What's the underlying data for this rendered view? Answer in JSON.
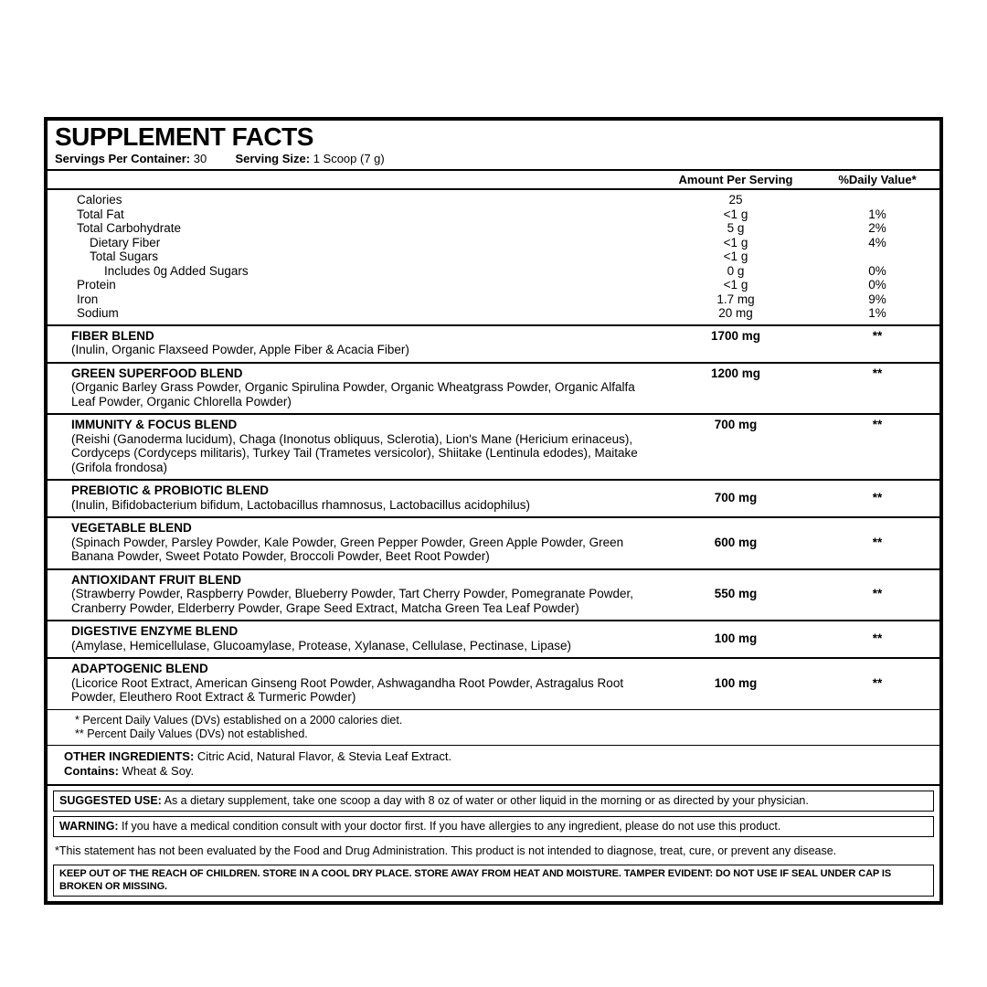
{
  "title": "SUPPLEMENT FACTS",
  "servings": {
    "per_container_label": "Servings Per Container:",
    "per_container_value": " 30",
    "size_label": "Serving Size:",
    "size_value": " 1 Scoop (7 g)"
  },
  "header": {
    "amount": "Amount  Per Serving",
    "dv": "%Daily Value*"
  },
  "nutrients": [
    {
      "name": "Calories",
      "indent": 1,
      "amount": "25",
      "dv": ""
    },
    {
      "name": "Total Fat",
      "indent": 1,
      "amount": "<1 g",
      "dv": "1%"
    },
    {
      "name": "Total Carbohydrate",
      "indent": 1,
      "amount": "5 g",
      "dv": "2%"
    },
    {
      "name": "Dietary Fiber",
      "indent": 2,
      "amount": "<1 g",
      "dv": "4%"
    },
    {
      "name": "Total Sugars",
      "indent": 2,
      "amount": "<1 g",
      "dv": ""
    },
    {
      "name": "Includes 0g Added Sugars",
      "indent": 3,
      "amount": "0 g",
      "dv": "0%"
    },
    {
      "name": "Protein",
      "indent": 1,
      "amount": "<1 g",
      "dv": "0%"
    },
    {
      "name": "Iron",
      "indent": 1,
      "amount": "1.7 mg",
      "dv": "9%"
    },
    {
      "name": "Sodium",
      "indent": 1,
      "amount": "20 mg",
      "dv": "1%"
    }
  ],
  "blends": [
    {
      "name": "FIBER BLEND",
      "desc": "(Inulin, Organic Flaxseed Powder, Apple Fiber & Acacia Fiber)",
      "amount": "1700 mg",
      "dv": "**",
      "align": "top"
    },
    {
      "name": "GREEN SUPERFOOD BLEND",
      "desc": "(Organic Barley Grass Powder, Organic Spirulina Powder, Organic Wheatgrass Powder, Organic Alfalfa Leaf Powder, Organic Chlorella Powder)",
      "amount": "1200 mg",
      "dv": "**",
      "align": "top"
    },
    {
      "name": "IMMUNITY & FOCUS BLEND",
      "desc": "(Reishi (Ganoderma lucidum), Chaga (Inonotus obliquus, Sclerotia), Lion's Mane (Hericium erinaceus), Cordyceps (Cordyceps militaris), Turkey Tail (Trametes versicolor), Shiitake (Lentinula edodes), Maitake (Grifola frondosa)",
      "amount": "700 mg",
      "dv": "**",
      "align": "top"
    },
    {
      "name": "PREBIOTIC & PROBIOTIC BLEND",
      "desc": "(Inulin, Bifidobacterium bifidum, Lactobacillus rhamnosus, Lactobacillus acidophilus)",
      "amount": "700 mg",
      "dv": "**",
      "align": "middle"
    },
    {
      "name": "VEGETABLE BLEND",
      "desc": "(Spinach Powder, Parsley Powder, Kale Powder, Green Pepper Powder, Green Apple Powder, Green Banana Powder, Sweet Potato Powder, Broccoli Powder, Beet Root Powder)",
      "amount": "600 mg",
      "dv": "**",
      "align": "middle"
    },
    {
      "name": "ANTIOXIDANT FRUIT BLEND",
      "desc": "(Strawberry Powder, Raspberry Powder, Blueberry Powder, Tart Cherry Powder, Pomegranate Powder, Cranberry Powder, Elderberry Powder, Grape Seed Extract, Matcha Green Tea Leaf Powder)",
      "amount": "550 mg",
      "dv": "**",
      "align": "middle"
    },
    {
      "name": "DIGESTIVE ENZYME BLEND",
      "desc": "(Amylase, Hemicellulase, Glucoamylase, Protease, Xylanase, Cellulase, Pectinase, Lipase)",
      "amount": "100 mg",
      "dv": "**",
      "align": "middle"
    },
    {
      "name": "ADAPTOGENIC BLEND",
      "desc": "(Licorice Root Extract, American Ginseng Root Powder, Ashwagandha Root Powder, Astragalus Root Powder, Eleuthero Root Extract & Turmeric Powder)",
      "amount": "100 mg",
      "dv": "**",
      "align": "middle"
    }
  ],
  "footnotes": {
    "l1": "* Percent Daily Values (DVs) established on a 2000 calories diet.",
    "l2": "** Percent Daily Values (DVs) not established."
  },
  "other": {
    "ing_label": "OTHER INGREDIENTS:",
    "ing_text": " Citric Acid, Natural Flavor, & Stevia Leaf Extract.",
    "contains_label": "Contains:",
    "contains_text": " Wheat & Soy."
  },
  "suggested": {
    "label": "SUGGESTED USE:",
    "text": " As a dietary supplement, take one scoop a day with 8 oz of water or other liquid in the morning or as directed by your physician."
  },
  "warning": {
    "label": "WARNING:",
    "text": " If you have a medical condition consult with your doctor first. If you have allergies to any ingredient, please do not use this product."
  },
  "fda": "*This statement has not been evaluated by the Food and Drug Administration. This product is not intended to diagnose, treat, cure, or prevent any disease.",
  "storage": "KEEP OUT OF THE REACH OF CHILDREN. STORE IN A COOL DRY PLACE. STORE AWAY FROM HEAT AND MOISTURE. TAMPER EVIDENT: DO NOT USE IF SEAL UNDER CAP IS BROKEN OR MISSING."
}
